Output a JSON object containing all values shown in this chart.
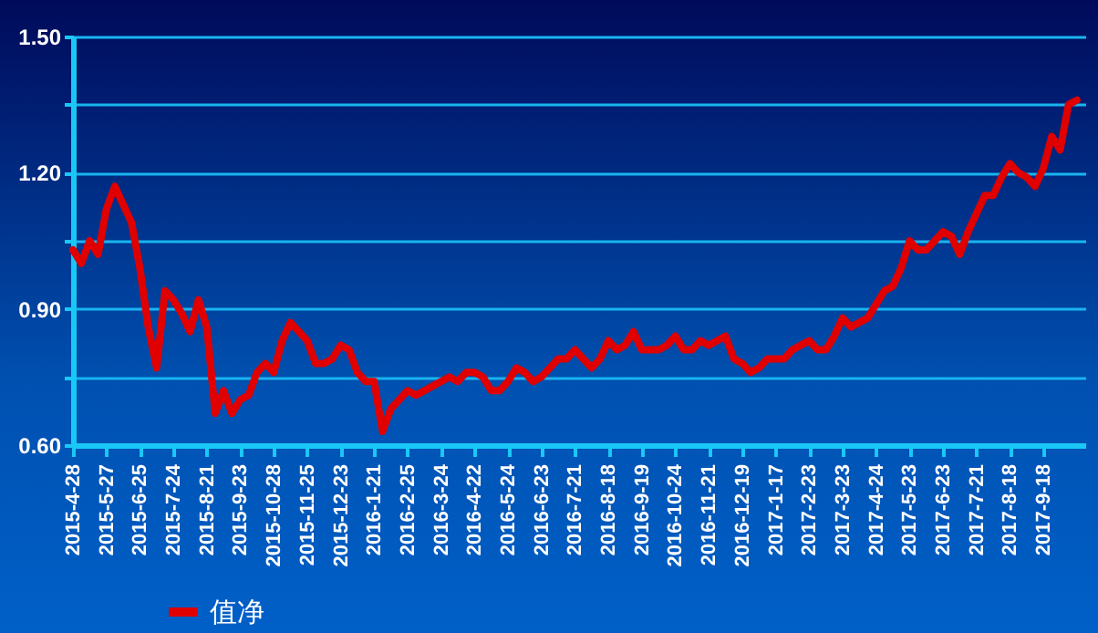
{
  "chart_data": {
    "type": "line",
    "categories": [
      "2015-4-28",
      null,
      null,
      null,
      "2015-5-27",
      null,
      null,
      null,
      "2015-6-25",
      null,
      null,
      null,
      "2015-7-24",
      null,
      null,
      null,
      "2015-8-21",
      null,
      null,
      null,
      "2015-9-23",
      null,
      null,
      null,
      "2015-10-28",
      null,
      null,
      null,
      "2015-11-25",
      null,
      null,
      null,
      "2015-12-23",
      null,
      null,
      null,
      "2016-1-21",
      null,
      null,
      null,
      "2016-2-25",
      null,
      null,
      null,
      "2016-3-24",
      null,
      null,
      null,
      "2016-4-22",
      null,
      null,
      null,
      "2016-5-24",
      null,
      null,
      null,
      "2016-6-23",
      null,
      null,
      null,
      "2016-7-21",
      null,
      null,
      null,
      "2016-8-18",
      null,
      null,
      null,
      "2016-9-19",
      null,
      null,
      null,
      "2016-10-24",
      null,
      null,
      null,
      "2016-11-21",
      null,
      null,
      null,
      "2016-12-19",
      null,
      null,
      null,
      "2017-1-17",
      null,
      null,
      null,
      "2017-2-23",
      null,
      null,
      null,
      "2017-3-23",
      null,
      null,
      null,
      "2017-4-24",
      null,
      null,
      null,
      "2017-5-23",
      null,
      null,
      null,
      "2017-6-23",
      null,
      null,
      null,
      "2017-7-21",
      null,
      null,
      null,
      "2017-8-18",
      null,
      null,
      null,
      "2017-9-18",
      null,
      null,
      null,
      null,
      null
    ],
    "series": [
      {
        "name": "值净",
        "color": "#e00000",
        "values": [
          1.03,
          1.0,
          1.05,
          1.02,
          1.12,
          1.17,
          1.13,
          1.09,
          0.99,
          0.86,
          0.77,
          0.94,
          0.92,
          0.89,
          0.85,
          0.92,
          0.86,
          0.67,
          0.72,
          0.67,
          0.7,
          0.71,
          0.76,
          0.78,
          0.76,
          0.83,
          0.87,
          0.85,
          0.83,
          0.78,
          0.78,
          0.79,
          0.82,
          0.81,
          0.76,
          0.74,
          0.74,
          0.63,
          0.68,
          0.7,
          0.72,
          0.71,
          0.72,
          0.73,
          0.74,
          0.75,
          0.74,
          0.76,
          0.76,
          0.75,
          0.72,
          0.72,
          0.74,
          0.77,
          0.76,
          0.74,
          0.75,
          0.77,
          0.79,
          0.79,
          0.81,
          0.79,
          0.77,
          0.79,
          0.83,
          0.81,
          0.82,
          0.85,
          0.81,
          0.81,
          0.81,
          0.82,
          0.84,
          0.81,
          0.81,
          0.83,
          0.82,
          0.83,
          0.84,
          0.79,
          0.78,
          0.76,
          0.77,
          0.79,
          0.79,
          0.79,
          0.81,
          0.82,
          0.83,
          0.81,
          0.81,
          0.84,
          0.88,
          0.86,
          0.87,
          0.88,
          0.91,
          0.94,
          0.95,
          0.99,
          1.05,
          1.03,
          1.03,
          1.05,
          1.07,
          1.06,
          1.02,
          1.07,
          1.11,
          1.15,
          1.15,
          1.19,
          1.22,
          1.2,
          1.19,
          1.17,
          1.21,
          1.28,
          1.25,
          1.35,
          1.36,
          null
        ]
      }
    ],
    "ylim": [
      0.6,
      1.5
    ],
    "yticks": [
      {
        "value": 0.6,
        "label": "0.60"
      },
      {
        "value": 0.75,
        "label": null
      },
      {
        "value": 0.9,
        "label": "0.90"
      },
      {
        "value": 1.05,
        "label": null
      },
      {
        "value": 1.2,
        "label": "1.20"
      },
      {
        "value": 1.35,
        "label": null
      },
      {
        "value": 1.5,
        "label": "1.50"
      }
    ],
    "grid": "y",
    "legend": "bottom"
  }
}
